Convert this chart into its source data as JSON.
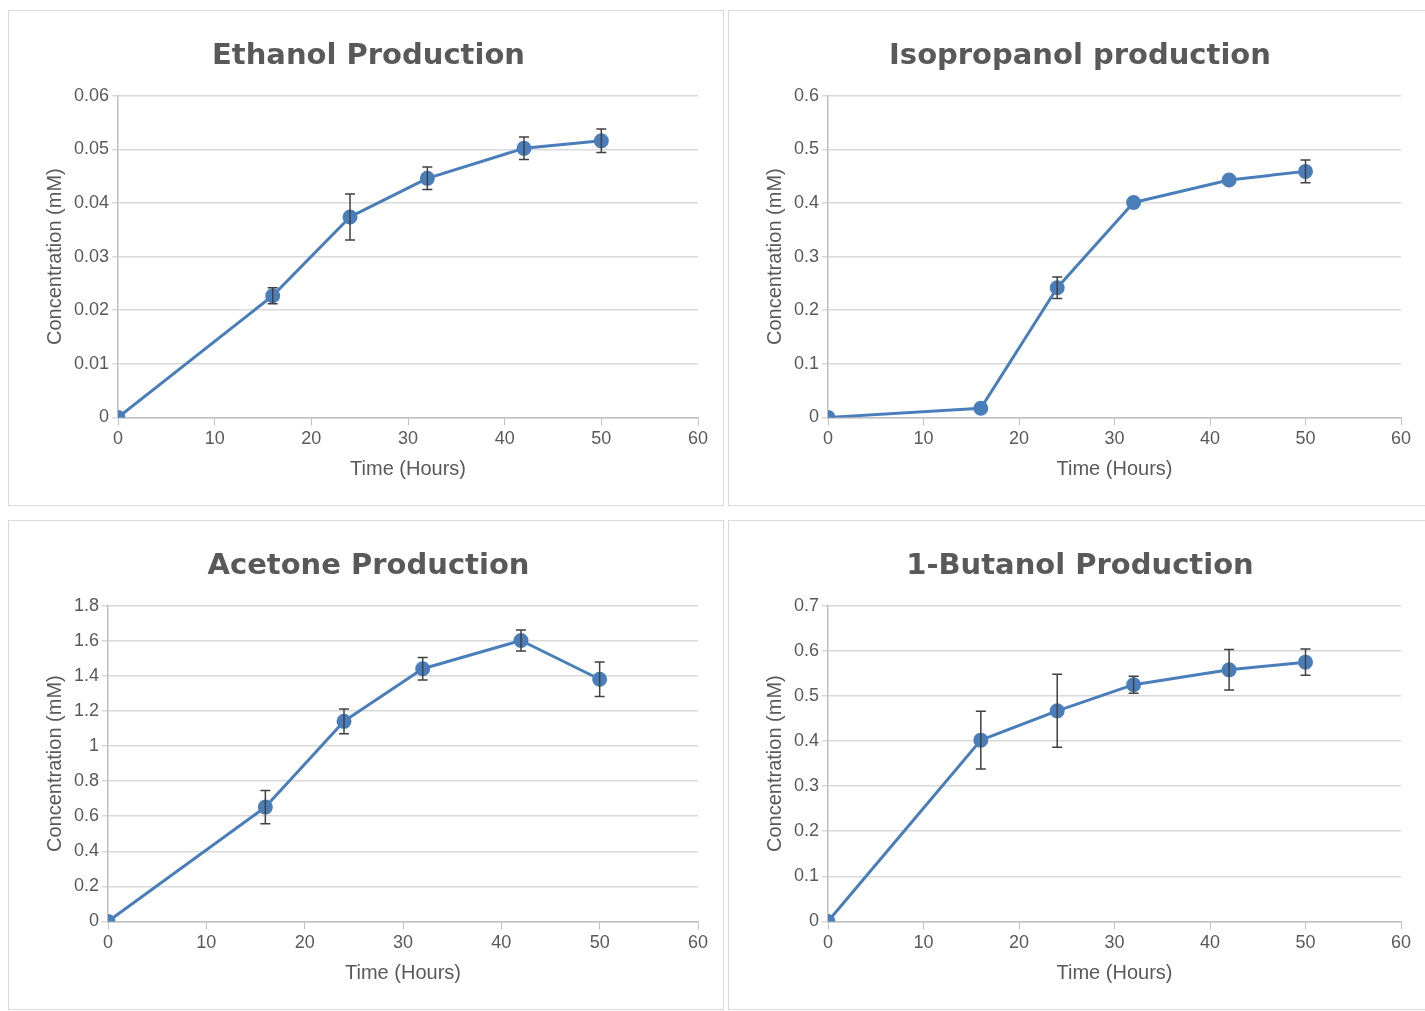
{
  "chart_data": [
    {
      "type": "line",
      "title": "Ethanol Production",
      "xlabel": "Time (Hours)",
      "ylabel": "Concentration (mM)",
      "x": [
        0,
        16,
        24,
        32,
        42,
        50
      ],
      "series": [
        {
          "color": "#4a7ebb",
          "values": [
            0,
            0.0227,
            0.0374,
            0.0446,
            0.0502,
            0.0516
          ],
          "errors": [
            null,
            0.0015,
            0.0043,
            0.0021,
            0.0021,
            0.0022
          ]
        }
      ],
      "xlim": [
        0,
        60
      ],
      "xticks": [
        0,
        10,
        20,
        30,
        40,
        50,
        60
      ],
      "ylim": [
        0,
        0.06
      ],
      "yticks": [
        0,
        0.01,
        0.02,
        0.03,
        0.04,
        0.05,
        0.06
      ],
      "grid": "y",
      "legend": false,
      "marker": "circle",
      "line_style": "solid"
    },
    {
      "type": "line",
      "title": "Isopropanol production",
      "xlabel": "Time (Hours)",
      "ylabel": "Concentration (mM)",
      "x": [
        0,
        16,
        24,
        32,
        42,
        50
      ],
      "series": [
        {
          "color": "#4a7ebb",
          "values": [
            0,
            0.017,
            0.242,
            0.401,
            0.443,
            0.459
          ],
          "errors": [
            null,
            null,
            0.02,
            null,
            null,
            0.021
          ]
        }
      ],
      "xlim": [
        0,
        60
      ],
      "xticks": [
        0,
        10,
        20,
        30,
        40,
        50,
        60
      ],
      "ylim": [
        0,
        0.6
      ],
      "yticks": [
        0,
        0.1,
        0.2,
        0.3,
        0.4,
        0.5,
        0.6
      ],
      "grid": "y",
      "legend": false,
      "marker": "circle",
      "line_style": "solid"
    },
    {
      "type": "line",
      "title": "Acetone Production",
      "xlabel": "Time (Hours)",
      "ylabel": "Concentration (mM)",
      "x": [
        0,
        16,
        24,
        32,
        42,
        50
      ],
      "series": [
        {
          "color": "#4a7ebb",
          "values": [
            0,
            0.652,
            1.141,
            1.441,
            1.602,
            1.381
          ],
          "errors": [
            null,
            0.095,
            0.071,
            0.064,
            0.06,
            0.098
          ]
        }
      ],
      "xlim": [
        0,
        60
      ],
      "xticks": [
        0,
        10,
        20,
        30,
        40,
        50,
        60
      ],
      "ylim": [
        0,
        1.8
      ],
      "yticks": [
        0,
        0.2,
        0.4,
        0.6,
        0.8,
        1,
        1.2,
        1.4,
        1.6,
        1.8
      ],
      "grid": "y",
      "legend": false,
      "marker": "circle",
      "line_style": "solid"
    },
    {
      "type": "line",
      "title": "1-Butanol Production",
      "xlabel": "Time (Hours)",
      "ylabel": "Concentration (mM)",
      "x": [
        0,
        16,
        24,
        32,
        42,
        50
      ],
      "series": [
        {
          "color": "#4a7ebb",
          "values": [
            0,
            0.402,
            0.467,
            0.525,
            0.558,
            0.575
          ],
          "errors": [
            null,
            0.064,
            0.081,
            0.019,
            0.045,
            0.029
          ]
        }
      ],
      "xlim": [
        0,
        60
      ],
      "xticks": [
        0,
        10,
        20,
        30,
        40,
        50,
        60
      ],
      "ylim": [
        0,
        0.7
      ],
      "yticks": [
        0,
        0.1,
        0.2,
        0.3,
        0.4,
        0.5,
        0.6,
        0.7
      ],
      "grid": "y",
      "legend": false,
      "marker": "circle",
      "line_style": "solid"
    }
  ]
}
